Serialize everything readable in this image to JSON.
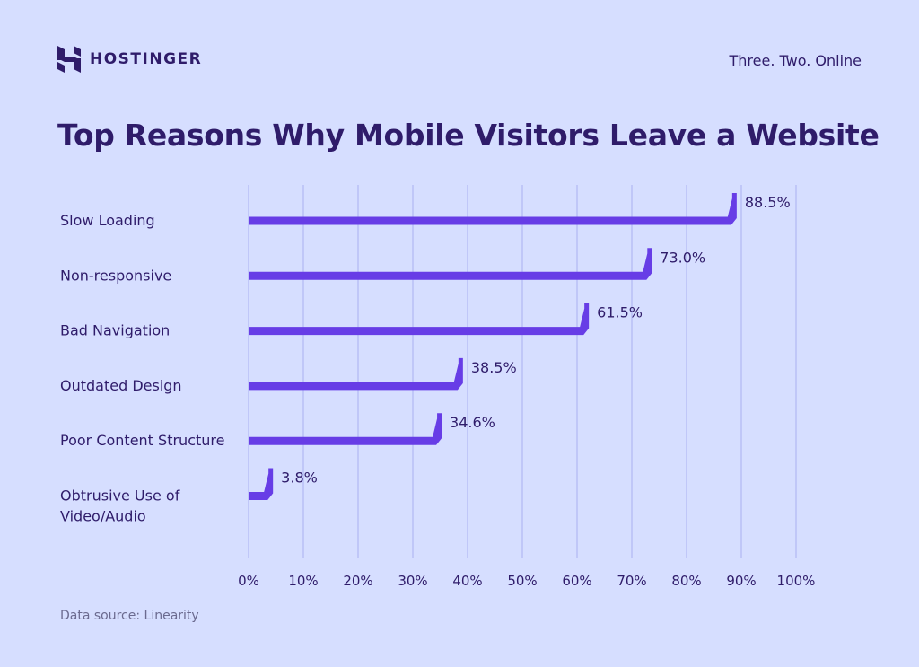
{
  "brand": {
    "name": "HOSTINGER",
    "tagline": "Three. Two. Online"
  },
  "colors": {
    "background": "#d6deff",
    "bar": "#673de6",
    "text": "#2f1c6a",
    "grid": "#aab0f2",
    "muted": "#6b6a8f"
  },
  "footer": {
    "source": "Data source: Linearity"
  },
  "chart_data": {
    "type": "bar",
    "orientation": "horizontal",
    "title": "Top Reasons Why Mobile Visitors Leave a Website",
    "categories": [
      "Slow Loading",
      "Non-responsive",
      "Bad Navigation",
      "Outdated Design",
      "Poor Content Structure",
      "Obtrusive Use of\nVideo/Audio"
    ],
    "values": [
      88.5,
      73.0,
      61.5,
      38.5,
      34.6,
      3.8
    ],
    "value_labels": [
      "88.5%",
      "73.0%",
      "61.5%",
      "38.5%",
      "34.6%",
      "3.8%"
    ],
    "xlim": [
      0,
      100
    ],
    "xticks": [
      "0%",
      "10%",
      "20%",
      "30%",
      "40%",
      "50%",
      "60%",
      "70%",
      "80%",
      "90%",
      "100%"
    ],
    "grid": true,
    "legend": "none"
  }
}
